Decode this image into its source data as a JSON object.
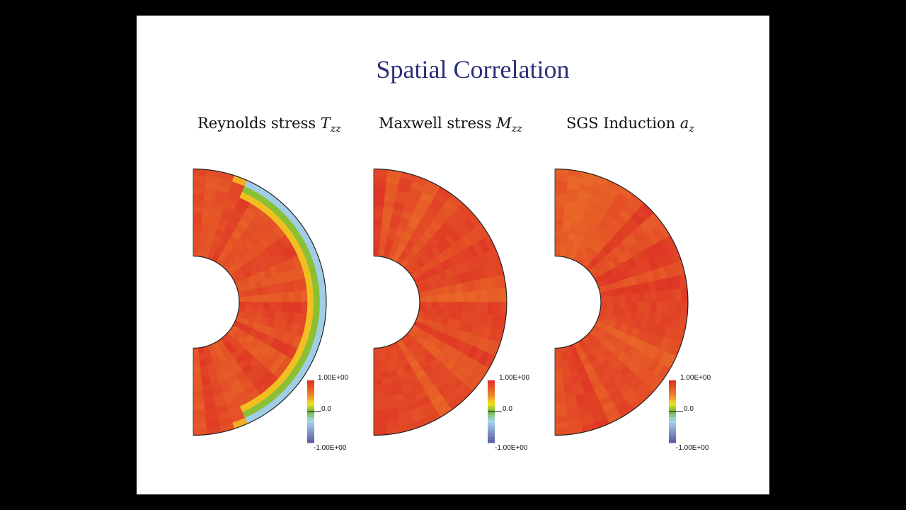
{
  "slide": {
    "title": "Spatial Correlation"
  },
  "chart_data": [
    {
      "type": "heatmap",
      "geometry": "half-annulus (meridional plane)",
      "title_main": "Reynolds stress ",
      "title_sym": "T",
      "title_sub": "zz",
      "colorbar": {
        "ticks": [
          "1.00E+00",
          "0.0",
          "-1.00E+00"
        ],
        "range": [
          -1,
          1
        ],
        "colors": [
          "#dc2a24",
          "#f08a2a",
          "#f2e21a",
          "#6fb83a",
          "#a6d6ec",
          "#5a5aa0"
        ]
      },
      "pattern": "mostly positive (red) throughout; negative band (light blue) near outer boundary at low latitudes"
    },
    {
      "type": "heatmap",
      "geometry": "half-annulus (meridional plane)",
      "title_main": "Maxwell stress ",
      "title_sym": "M",
      "title_sub": "zz",
      "colorbar": {
        "ticks": [
          "1.00E+00",
          "0.0",
          "-1.00E+00"
        ],
        "range": [
          -1,
          1
        ],
        "colors": [
          "#dc2a24",
          "#f08a2a",
          "#f2e21a",
          "#6fb83a",
          "#a6d6ec",
          "#5a5aa0"
        ]
      },
      "pattern": "positive (red/orange) throughout"
    },
    {
      "type": "heatmap",
      "geometry": "half-annulus (meridional plane)",
      "title_main": "SGS Induction ",
      "title_sym": "a",
      "title_sub": "z",
      "colorbar": {
        "ticks": [
          "1.00E+00",
          "0.0",
          "-1.00E+00"
        ],
        "range": [
          -1,
          1
        ],
        "colors": [
          "#dc2a24",
          "#f08a2a",
          "#f2e21a",
          "#6fb83a",
          "#a6d6ec",
          "#5a5aa0"
        ]
      },
      "pattern": "positive (red/orange) throughout"
    }
  ]
}
